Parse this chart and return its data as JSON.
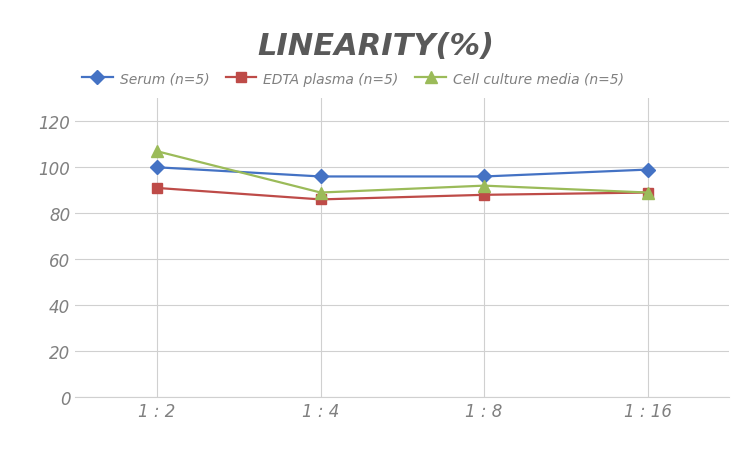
{
  "title": "LINEARITY(%)",
  "title_fontsize": 22,
  "title_fontstyle": "italic",
  "title_fontweight": "bold",
  "title_color": "#595959",
  "x_labels": [
    "1 : 2",
    "1 : 4",
    "1 : 8",
    "1 : 16"
  ],
  "x_positions": [
    0,
    1,
    2,
    3
  ],
  "series": [
    {
      "label": "Serum (n=5)",
      "values": [
        100,
        96,
        96,
        99
      ],
      "color": "#4472C4",
      "marker": "D",
      "markersize": 7,
      "linewidth": 1.6
    },
    {
      "label": "EDTA plasma (n=5)",
      "values": [
        91,
        86,
        88,
        89
      ],
      "color": "#BE4B48",
      "marker": "s",
      "markersize": 7,
      "linewidth": 1.6
    },
    {
      "label": "Cell culture media (n=5)",
      "values": [
        107,
        89,
        92,
        89
      ],
      "color": "#9BBB59",
      "marker": "^",
      "markersize": 8,
      "linewidth": 1.6
    }
  ],
  "ylim": [
    0,
    130
  ],
  "yticks": [
    0,
    20,
    40,
    60,
    80,
    100,
    120
  ],
  "grid_color": "#d0d0d0",
  "background_color": "#ffffff",
  "legend_fontsize": 10,
  "tick_fontsize": 12,
  "tick_color": "#808080",
  "tick_fontstyle": "italic"
}
